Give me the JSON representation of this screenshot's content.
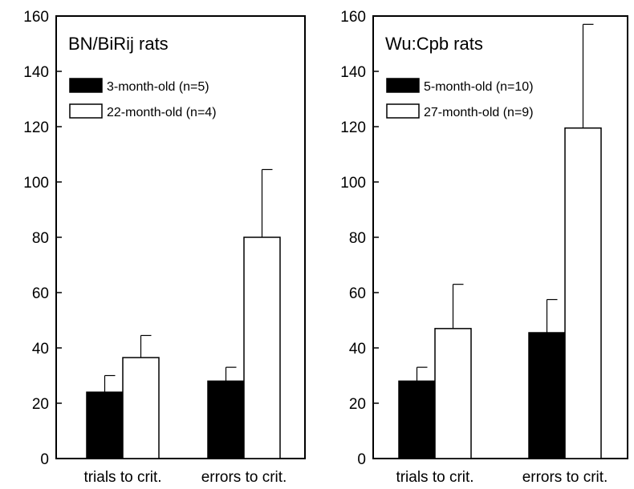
{
  "chart_data": [
    {
      "type": "bar",
      "title": "BN/BiRij rats",
      "xlabel": "",
      "ylabel": "",
      "ylim": [
        0,
        160
      ],
      "yticks": [
        0,
        20,
        40,
        60,
        80,
        100,
        120,
        140,
        160
      ],
      "categories": [
        "trials to crit.",
        "errors to crit."
      ],
      "legend_position": "top-left",
      "grid": false,
      "series": [
        {
          "name": "3-month-old (n=5)",
          "fill": "#000000",
          "values": [
            24,
            28
          ],
          "errors": [
            6,
            5
          ]
        },
        {
          "name": "22-month-old (n=4)",
          "fill": "#ffffff",
          "values": [
            36.5,
            80
          ],
          "errors": [
            8,
            24.5
          ]
        }
      ]
    },
    {
      "type": "bar",
      "title": "Wu:Cpb rats",
      "xlabel": "",
      "ylabel": "",
      "ylim": [
        0,
        160
      ],
      "yticks": [
        0,
        20,
        40,
        60,
        80,
        100,
        120,
        140,
        160
      ],
      "categories": [
        "trials to crit.",
        "errors to crit."
      ],
      "legend_position": "top-left",
      "grid": false,
      "series": [
        {
          "name": "5-month-old (n=10)",
          "fill": "#000000",
          "values": [
            28,
            45.5
          ],
          "errors": [
            5,
            12
          ]
        },
        {
          "name": "27-month-old (n=9)",
          "fill": "#ffffff",
          "values": [
            47,
            119.5
          ],
          "errors": [
            16,
            37.5
          ]
        }
      ]
    }
  ]
}
